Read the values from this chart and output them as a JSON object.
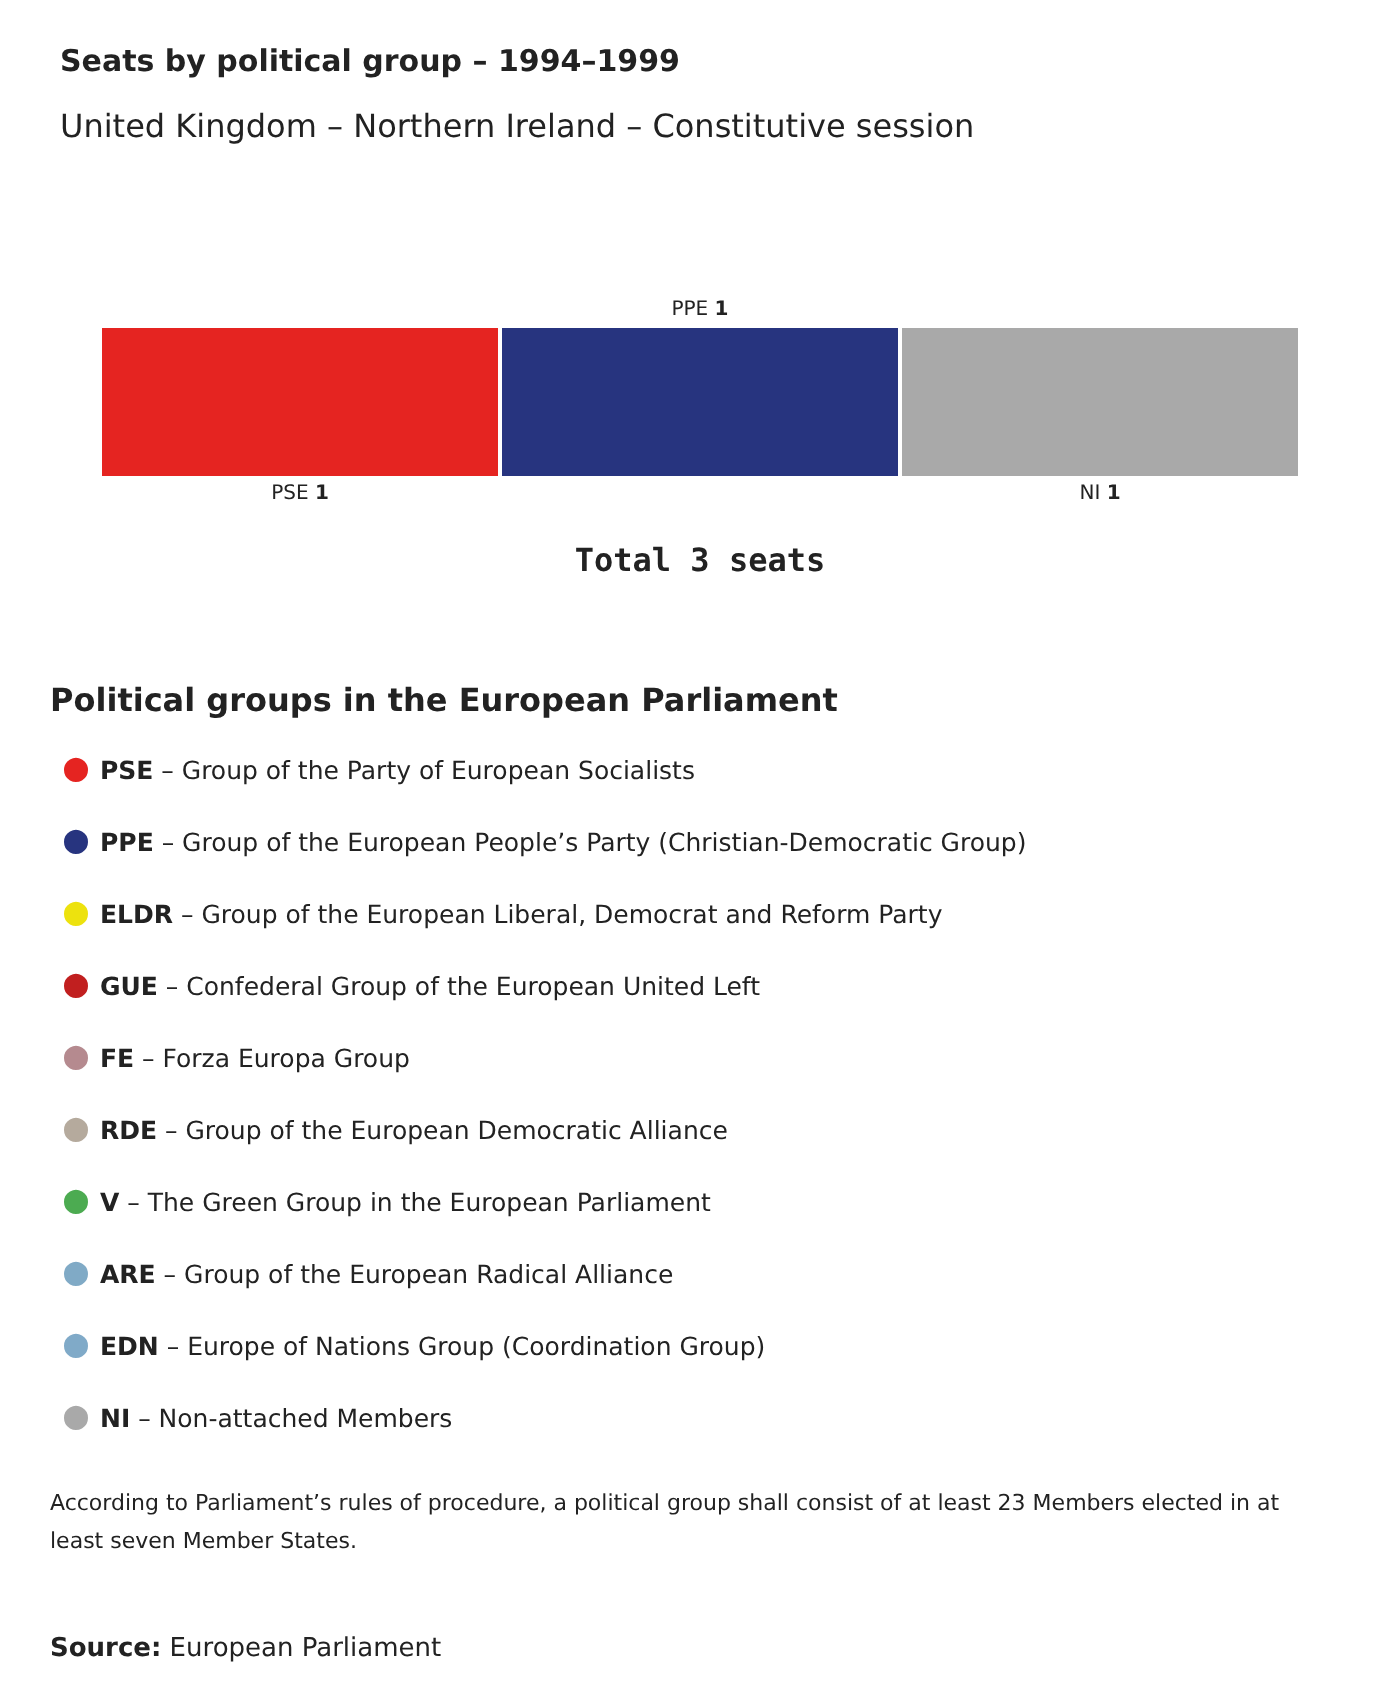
{
  "chart_data": {
    "type": "bar",
    "orientation": "horizontal",
    "stacked": true,
    "title": "Seats by political group – 1994–1999",
    "subtitle": "United Kingdom – Northern Ireland – Constitutive session",
    "legend_title": "Political groups in the European Parliament",
    "legend": "bottom",
    "categories": [
      null
    ],
    "series": [
      {
        "name": "PSE – Group of the Party of European Socialists",
        "color": "#e52421",
        "values": [
          1
        ],
        "value_labels": [
          "PSE 1"
        ]
      },
      {
        "name": "PPE – Group of the European People’s Party (Christian-Democratic Group)",
        "color": "#27347f",
        "values": [
          1
        ],
        "value_labels": [
          "PPE 1"
        ]
      },
      {
        "name": "ELDR – Group of the European Liberal, Democrat and Reform Party",
        "color": "#ede20e",
        "values": [
          null
        ]
      },
      {
        "name": "GUE – Confederal Group of the European United Left",
        "color": "#c11f1f",
        "values": [
          null
        ]
      },
      {
        "name": "FE – Forza Europa Group",
        "color": "#b58a8f",
        "values": [
          null
        ]
      },
      {
        "name": "RDE – Group of the European Democratic Alliance",
        "color": "#b5aa9d",
        "values": [
          null
        ]
      },
      {
        "name": "V – The Green Group in the European Parliament",
        "color": "#4cab51",
        "values": [
          null
        ]
      },
      {
        "name": "ARE – Group of the European Radical Alliance",
        "color": "#80aac6",
        "values": [
          null
        ]
      },
      {
        "name": "EDN – Europe of Nations Group (Coordination Group)",
        "color": "#80aac8",
        "values": [
          null
        ]
      },
      {
        "name": "NI – Non-attached Members",
        "color": "#a9a9a9",
        "values": [
          1
        ],
        "value_labels": [
          "NI 1"
        ]
      }
    ],
    "totals": [
      "Total 3 seats"
    ],
    "annotations": [
      "According to Parliament’s rules of procedure, a political group shall consist of at least 23 Members elected in at least seven Member States.",
      "Source: European Parliament"
    ]
  }
}
